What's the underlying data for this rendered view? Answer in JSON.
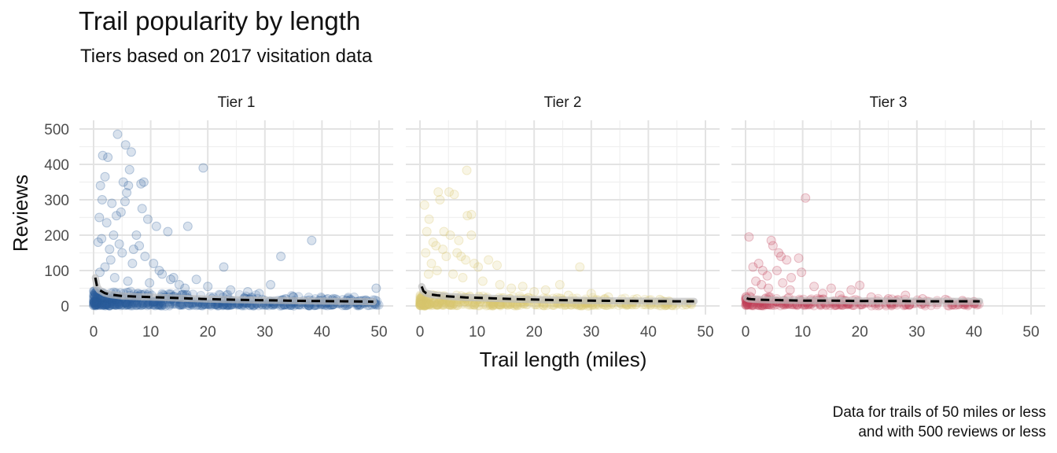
{
  "title": "Trail popularity by length",
  "subtitle": "Tiers based on 2017 visitation data",
  "caption_line1": "Data for trails of 50 miles or less",
  "caption_line2": "and with 500 reviews or less",
  "chart_data": {
    "type": "scatter",
    "xlabel": "Trail length (miles)",
    "ylabel": "Reviews",
    "xlim": [
      0,
      50
    ],
    "ylim": [
      0,
      500
    ],
    "x_ticks": [
      0,
      10,
      20,
      30,
      40,
      50
    ],
    "y_ticks": [
      0,
      100,
      200,
      300,
      400,
      500
    ],
    "grid": true,
    "facets": [
      {
        "name": "Tier 1",
        "color": "#2e5f9b",
        "dense_range": {
          "x_max": 50,
          "y_max": 40,
          "count": 650
        },
        "points": [
          [
            1.0,
            250
          ],
          [
            1.5,
            300
          ],
          [
            1.2,
            340
          ],
          [
            2.0,
            365
          ],
          [
            1.6,
            425
          ],
          [
            2.5,
            420
          ],
          [
            4.2,
            485
          ],
          [
            5.6,
            455
          ],
          [
            6.6,
            435
          ],
          [
            5.2,
            350
          ],
          [
            6.1,
            340
          ],
          [
            5.8,
            320
          ],
          [
            8.3,
            345
          ],
          [
            8.8,
            350
          ],
          [
            3.2,
            290
          ],
          [
            4.0,
            255
          ],
          [
            4.8,
            265
          ],
          [
            5.5,
            295
          ],
          [
            6.3,
            385
          ],
          [
            8.5,
            275
          ],
          [
            9.5,
            245
          ],
          [
            11.0,
            225
          ],
          [
            13.0,
            210
          ],
          [
            16.5,
            225
          ],
          [
            19.2,
            390
          ],
          [
            38.2,
            185
          ],
          [
            22.8,
            110
          ],
          [
            32.8,
            140
          ],
          [
            49.5,
            50
          ],
          [
            31.0,
            60
          ],
          [
            18.0,
            75
          ],
          [
            2.3,
            235
          ],
          [
            3.5,
            200
          ],
          [
            2.8,
            160
          ],
          [
            0.8,
            180
          ],
          [
            1.4,
            190
          ],
          [
            3.0,
            130
          ],
          [
            4.5,
            175
          ],
          [
            5.0,
            150
          ],
          [
            7.0,
            160
          ],
          [
            8.0,
            170
          ],
          [
            9.0,
            140
          ],
          [
            7.5,
            200
          ],
          [
            10.5,
            120
          ],
          [
            12.0,
            90
          ],
          [
            13.5,
            75
          ],
          [
            15.0,
            60
          ],
          [
            14.0,
            80
          ],
          [
            11.5,
            100
          ],
          [
            6.8,
            120
          ],
          [
            2.0,
            110
          ],
          [
            1.1,
            95
          ],
          [
            3.7,
            80
          ],
          [
            6.0,
            70
          ],
          [
            9.8,
            65
          ],
          [
            16.0,
            50
          ],
          [
            20.0,
            55
          ],
          [
            24.0,
            45
          ],
          [
            27.0,
            40
          ],
          [
            29.0,
            35
          ],
          [
            35.0,
            25
          ],
          [
            41.0,
            20
          ],
          [
            45.0,
            18
          ]
        ],
        "trend": [
          [
            0.3,
            80
          ],
          [
            0.6,
            55
          ],
          [
            1,
            45
          ],
          [
            2,
            36
          ],
          [
            3,
            32
          ],
          [
            5,
            28
          ],
          [
            8,
            26
          ],
          [
            12,
            24
          ],
          [
            17,
            21
          ],
          [
            23,
            18
          ],
          [
            30,
            16
          ],
          [
            38,
            14
          ],
          [
            44,
            13
          ],
          [
            49,
            12
          ]
        ]
      },
      {
        "name": "Tier 2",
        "color": "#d9c870",
        "dense_range": {
          "x_max": 48,
          "y_max": 30,
          "count": 450
        },
        "points": [
          [
            0.8,
            285
          ],
          [
            1.6,
            245
          ],
          [
            1.2,
            210
          ],
          [
            2.3,
            180
          ],
          [
            3.2,
            322
          ],
          [
            3.5,
            300
          ],
          [
            5.1,
            322
          ],
          [
            6.0,
            315
          ],
          [
            8.2,
            383
          ],
          [
            8.3,
            255
          ],
          [
            9.0,
            258
          ],
          [
            4.2,
            210
          ],
          [
            5.3,
            200
          ],
          [
            2.8,
            170
          ],
          [
            4.0,
            160
          ],
          [
            6.5,
            150
          ],
          [
            7.2,
            140
          ],
          [
            8.0,
            130
          ],
          [
            9.5,
            120
          ],
          [
            10.2,
            110
          ],
          [
            12.0,
            130
          ],
          [
            13.5,
            115
          ],
          [
            3.0,
            100
          ],
          [
            2.0,
            120
          ],
          [
            1.5,
            90
          ],
          [
            5.8,
            90
          ],
          [
            7.5,
            80
          ],
          [
            11.0,
            70
          ],
          [
            14.0,
            60
          ],
          [
            16.0,
            50
          ],
          [
            18.0,
            55
          ],
          [
            20.0,
            40
          ],
          [
            22.0,
            45
          ],
          [
            26.0,
            30
          ],
          [
            28.0,
            110
          ],
          [
            24.5,
            60
          ],
          [
            30.0,
            35
          ],
          [
            33.0,
            25
          ],
          [
            38.0,
            20
          ],
          [
            42.0,
            18
          ],
          [
            9.0,
            200
          ],
          [
            6.8,
            185
          ],
          [
            4.6,
            140
          ],
          [
            1.0,
            150
          ]
        ],
        "trend": [
          [
            0.3,
            55
          ],
          [
            0.6,
            42
          ],
          [
            1,
            37
          ],
          [
            2,
            32
          ],
          [
            3,
            30
          ],
          [
            5,
            27
          ],
          [
            8,
            24
          ],
          [
            12,
            22
          ],
          [
            17,
            19
          ],
          [
            23,
            17
          ],
          [
            30,
            15
          ],
          [
            38,
            14
          ],
          [
            44,
            13
          ],
          [
            48,
            13
          ]
        ]
      },
      {
        "name": "Tier 3",
        "color": "#c0405a",
        "dense_range": {
          "x_max": 41,
          "y_max": 25,
          "count": 260
        },
        "points": [
          [
            0.6,
            195
          ],
          [
            4.5,
            185
          ],
          [
            4.8,
            170
          ],
          [
            5.8,
            150
          ],
          [
            6.2,
            140
          ],
          [
            9.3,
            135
          ],
          [
            7.2,
            130
          ],
          [
            2.3,
            120
          ],
          [
            1.3,
            110
          ],
          [
            3.0,
            100
          ],
          [
            5.5,
            100
          ],
          [
            9.8,
            95
          ],
          [
            3.8,
            85
          ],
          [
            10.5,
            305
          ],
          [
            8.0,
            80
          ],
          [
            1.8,
            70
          ],
          [
            6.5,
            65
          ],
          [
            2.8,
            60
          ],
          [
            12.0,
            55
          ],
          [
            15.0,
            50
          ],
          [
            18.5,
            45
          ],
          [
            20.0,
            58
          ],
          [
            7.8,
            45
          ],
          [
            4.0,
            50
          ],
          [
            1.0,
            40
          ],
          [
            13.5,
            35
          ],
          [
            16.5,
            30
          ],
          [
            22.0,
            25
          ],
          [
            25.0,
            20
          ],
          [
            28.0,
            30
          ],
          [
            31.0,
            20
          ],
          [
            35.0,
            18
          ],
          [
            38.0,
            15
          ],
          [
            40.0,
            12
          ]
        ],
        "trend": [
          [
            0.2,
            22
          ],
          [
            0.5,
            20
          ],
          [
            1,
            19
          ],
          [
            2,
            18
          ],
          [
            4,
            17
          ],
          [
            7,
            16
          ],
          [
            10,
            15
          ],
          [
            15,
            15
          ],
          [
            20,
            14
          ],
          [
            26,
            14
          ],
          [
            32,
            13
          ],
          [
            38,
            13
          ],
          [
            41,
            13
          ]
        ]
      }
    ]
  }
}
